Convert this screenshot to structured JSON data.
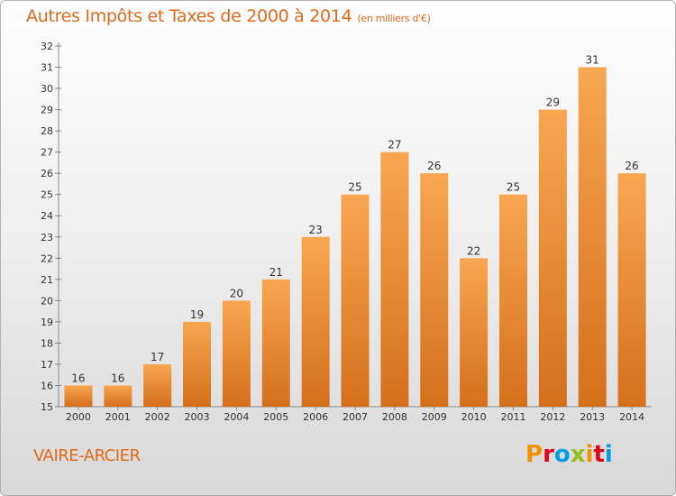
{
  "header": {
    "title": "Autres Impôts et Taxes de 2000 à 2014",
    "unit": "(en milliers d'€)"
  },
  "commune": "VAIRE-ARCIER",
  "logo": {
    "text": "Proxiti"
  },
  "colors": {
    "accent": "#e06a1b",
    "bar_light": "#f7a44f",
    "bar_dark": "#d9731d"
  },
  "chart_data": {
    "type": "bar",
    "title": "Autres Impôts et Taxes de 2000 à 2014",
    "subtitle": "(en milliers d'€)",
    "xlabel": "",
    "ylabel": "",
    "categories": [
      "2000",
      "2001",
      "2002",
      "2003",
      "2004",
      "2005",
      "2006",
      "2007",
      "2008",
      "2009",
      "2010",
      "2011",
      "2012",
      "2013",
      "2014"
    ],
    "values": [
      16,
      16,
      17,
      19,
      20,
      21,
      23,
      25,
      27,
      26,
      22,
      25,
      29,
      31,
      26
    ],
    "ylim": [
      15,
      32
    ],
    "yticks": [
      15,
      16,
      17,
      18,
      19,
      20,
      21,
      22,
      23,
      24,
      25,
      26,
      27,
      28,
      29,
      30,
      31,
      32
    ],
    "grid": false,
    "legend": "none"
  }
}
